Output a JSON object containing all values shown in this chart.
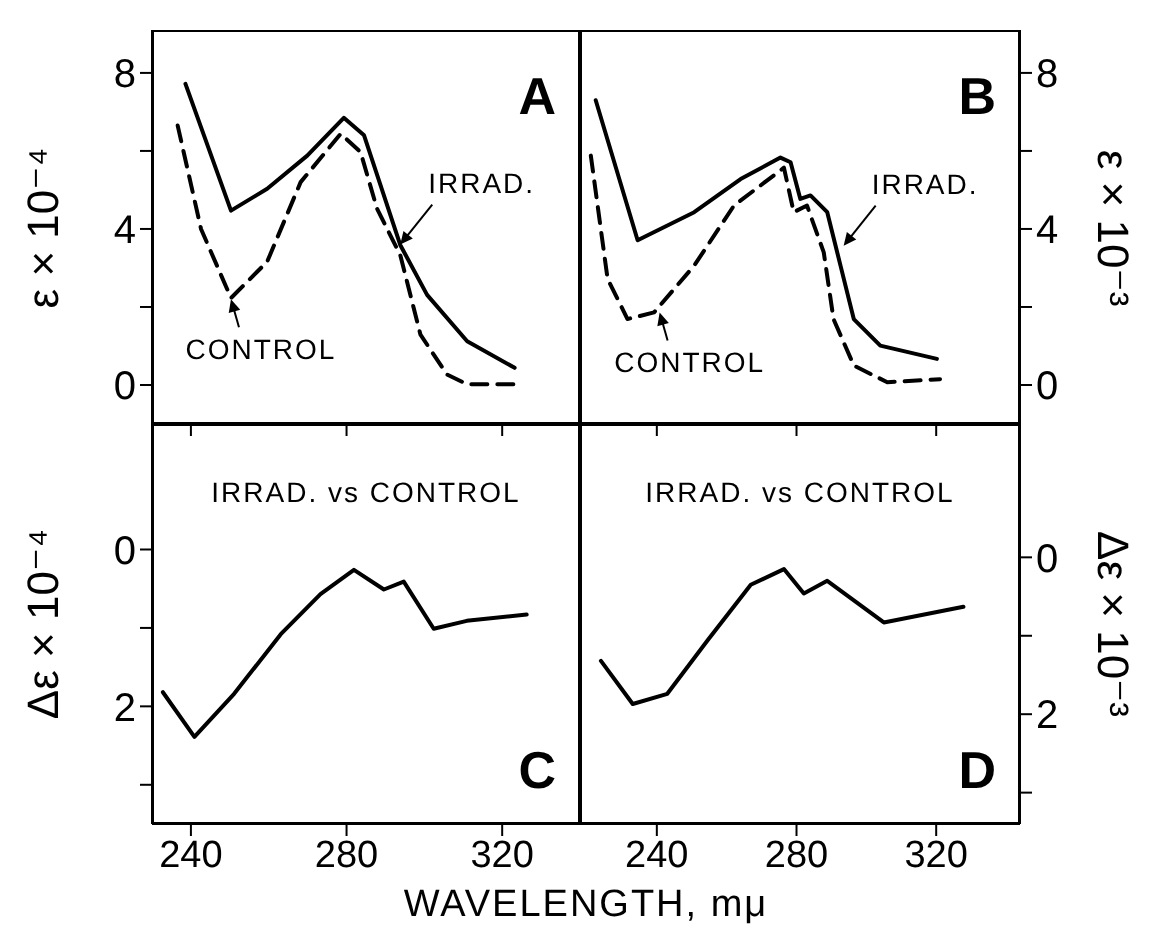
{
  "chart_data": [
    {
      "type": "line",
      "ylabel": "ε × 10⁻⁴",
      "xlim": [
        230,
        340
      ],
      "xticks": [
        {
          "value": 240,
          "label": null
        },
        {
          "value": 280,
          "label": null
        },
        {
          "value": 320,
          "label": null
        }
      ],
      "ylim": [
        -1,
        9.1
      ],
      "yticks": [
        0,
        {
          "value": 2,
          "label": null
        },
        4,
        {
          "value": 6,
          "label": null
        },
        8
      ],
      "tick_labels": "y",
      "grid": false,
      "legend": false,
      "series": [
        {
          "color": "#000000",
          "line_style": "solid",
          "x": [
            238.6,
            250.3,
            259.6,
            269.9,
            279.3,
            284.5,
            293.8,
            300.7,
            311,
            323.2
          ],
          "values": [
            7.72,
            4.47,
            5.03,
            5.88,
            6.85,
            6.4,
            3.59,
            2.31,
            1.12,
            0.44
          ]
        },
        {
          "color": "#000000",
          "line_style": "dashed",
          "x": [
            236.6,
            242.6,
            250.3,
            259.6,
            268.2,
            278.5,
            283.6,
            287.8,
            293.8,
            299,
            305.8,
            311,
            323.2
          ],
          "values": [
            6.65,
            4.0,
            2.23,
            3.16,
            5.2,
            6.44,
            5.97,
            4.53,
            3.33,
            1.29,
            0.27,
            0.02,
            0.02
          ]
        }
      ],
      "annotations": [
        "A",
        {
          "text": "IRRAD.",
          "x": 293.8,
          "y": 3.6
        },
        {
          "text": "CONTROL",
          "x": 250.3,
          "y": 2.2
        }
      ]
    },
    {
      "type": "line",
      "ylabel": "ε × 10⁻³",
      "xlim": [
        218,
        344
      ],
      "xticks": [
        {
          "value": 240,
          "label": null
        },
        {
          "value": 280,
          "label": null
        },
        {
          "value": 320,
          "label": null
        }
      ],
      "ylim": [
        -1,
        9.1
      ],
      "yticks": [
        0,
        {
          "value": 2,
          "label": null
        },
        4,
        {
          "value": 6,
          "label": null
        },
        8
      ],
      "tick_labels": "y",
      "grid": false,
      "legend": false,
      "series": [
        {
          "color": "#000000",
          "line_style": "solid",
          "x": [
            222.5,
            234.5,
            250.7,
            264,
            275.4,
            278.3,
            281.1,
            284,
            288.8,
            292.6,
            296.4,
            304,
            320.2
          ],
          "values": [
            7.3,
            3.71,
            4.43,
            5.28,
            5.83,
            5.71,
            4.77,
            4.86,
            4.43,
            3.06,
            1.69,
            1.01,
            0.67
          ]
        },
        {
          "color": "#000000",
          "line_style": "dashed",
          "x": [
            221.1,
            225.9,
            231.6,
            239.2,
            250.7,
            262.1,
            276.4,
            279.2,
            283,
            287.8,
            290.6,
            296.4,
            306,
            321.1
          ],
          "values": [
            5.88,
            2.72,
            1.69,
            1.86,
            3.06,
            4.6,
            5.57,
            4.43,
            4.6,
            3.4,
            1.69,
            0.5,
            0.07,
            0.15
          ]
        }
      ],
      "annotations": [
        "B",
        {
          "text": "IRRAD.",
          "x": 293.5,
          "y": 3.57
        },
        {
          "text": "CONTROL",
          "x": 240.8,
          "y": 1.86
        }
      ]
    },
    {
      "type": "line",
      "xlabel": "WAVELENGTH, mμ",
      "ylabel": "Δε × 10⁻⁴",
      "xlim": [
        230,
        340
      ],
      "xticks": [
        240,
        280,
        320
      ],
      "ylim": [
        3.5,
        -1.6
      ],
      "yticks": [
        {
          "value": 3,
          "label": null
        },
        2,
        {
          "value": 1,
          "label": null
        },
        0
      ],
      "grid": false,
      "legend": false,
      "series": [
        {
          "color": "#000000",
          "line_style": "solid",
          "x": [
            232.8,
            240.9,
            251.1,
            263.1,
            273.3,
            281.9,
            289.6,
            294.7,
            302.4,
            310.9,
            326.3
          ],
          "values": [
            1.82,
            2.39,
            1.84,
            1.08,
            0.57,
            0.26,
            0.51,
            0.41,
            1.01,
            0.91,
            0.83
          ]
        }
      ],
      "annotations": [
        "IRRAD. vs CONTROL",
        "C"
      ]
    },
    {
      "type": "line",
      "ylabel": "Δε × 10⁻³",
      "xlim": [
        218,
        344
      ],
      "xticks": [
        240,
        280,
        320
      ],
      "ylim": [
        3.4,
        -1.7
      ],
      "yticks": [
        {
          "value": 3,
          "label": null
        },
        2,
        {
          "value": 1,
          "label": null
        },
        0
      ],
      "grid": false,
      "legend": false,
      "series": [
        {
          "color": "#000000",
          "line_style": "solid",
          "x": [
            224,
            233.1,
            243,
            254.5,
            266.9,
            276.4,
            282.1,
            288.8,
            305,
            327.8
          ],
          "values": [
            1.32,
            1.87,
            1.74,
            1.06,
            0.35,
            0.15,
            0.46,
            0.3,
            0.83,
            0.63
          ]
        }
      ],
      "annotations": [
        "IRRAD. vs CONTROL",
        "D"
      ]
    }
  ]
}
